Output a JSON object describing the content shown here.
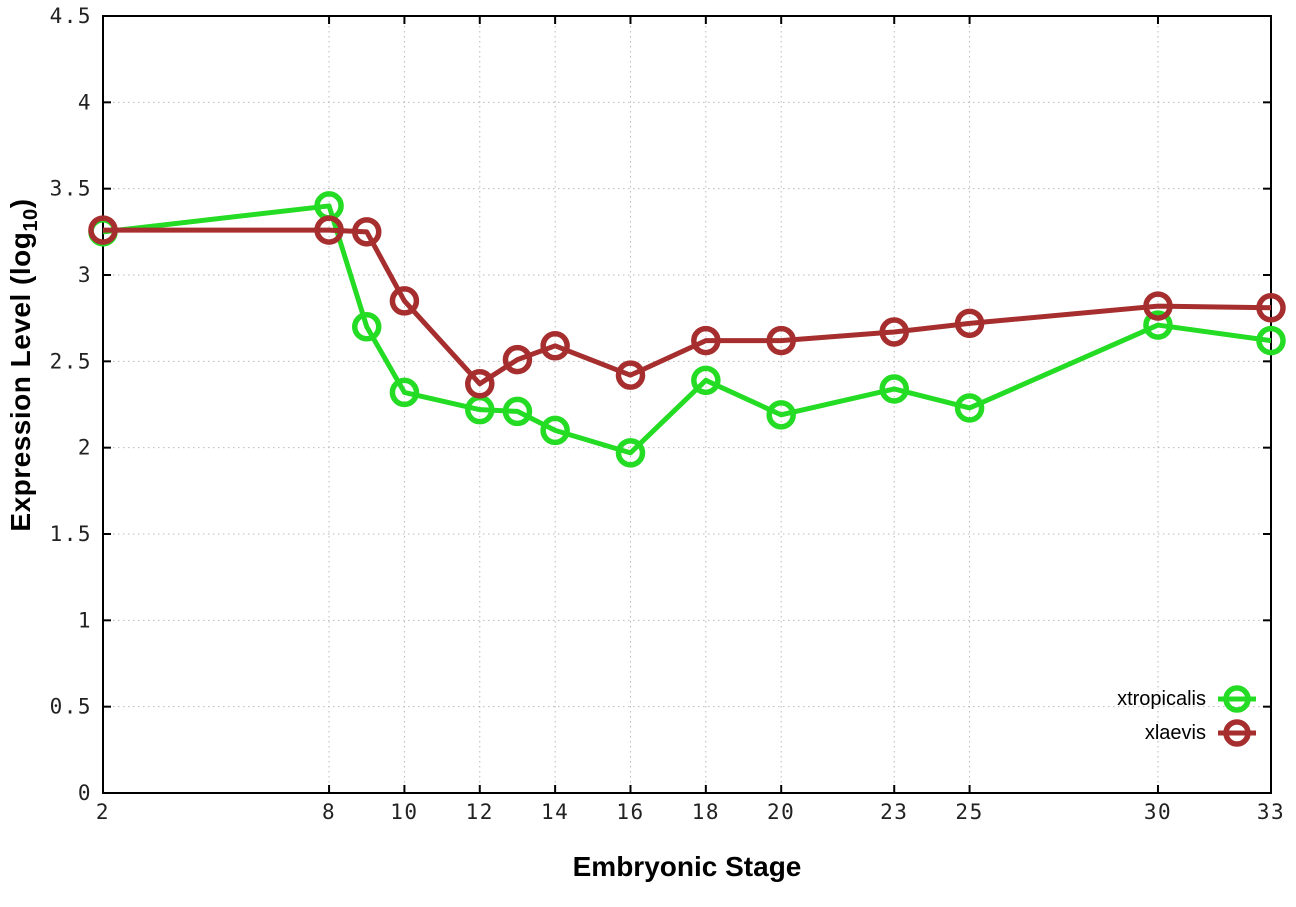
{
  "chart_data": {
    "type": "line",
    "title": "",
    "xlabel": "Embryonic Stage",
    "ylabel": "Expression Level (log10)",
    "ylabel_parts": {
      "base": "Expression Level (log",
      "sub": "10",
      "close": ")"
    },
    "xlim": [
      2,
      33
    ],
    "ylim": [
      0,
      4.5
    ],
    "x_ticks": [
      2,
      8,
      10,
      12,
      14,
      16,
      18,
      20,
      23,
      25,
      30,
      33
    ],
    "y_ticks": [
      0,
      0.5,
      1,
      1.5,
      2,
      2.5,
      3,
      3.5,
      4,
      4.5
    ],
    "grid": true,
    "legend_position": "bottom-right",
    "x": [
      2,
      8,
      9,
      10,
      12,
      13,
      14,
      16,
      18,
      20,
      23,
      25,
      30,
      33
    ],
    "series": [
      {
        "name": "xtropicalis",
        "color": "#23DC23",
        "values": [
          3.25,
          3.4,
          2.7,
          2.32,
          2.22,
          2.21,
          2.1,
          1.97,
          2.39,
          2.19,
          2.34,
          2.23,
          2.71,
          2.62
        ]
      },
      {
        "name": "xlaevis",
        "color": "#A62E2E",
        "values": [
          3.26,
          3.26,
          3.25,
          2.85,
          2.37,
          2.51,
          2.59,
          2.42,
          2.62,
          2.62,
          2.67,
          2.72,
          2.82,
          2.81
        ]
      }
    ]
  },
  "style": {
    "grid_color": "#b9b9b9",
    "axis_color": "#000000",
    "tick_label_color": "#222222"
  }
}
